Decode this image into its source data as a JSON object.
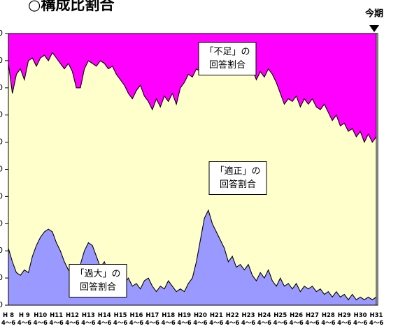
{
  "chart_data": {
    "type": "stacked_area",
    "title": "○構成比割合",
    "current_label": "今期",
    "categories": [
      "H 8\n4～6",
      null,
      null,
      null,
      "H 9\n4～6",
      null,
      null,
      null,
      "H10\n4～6",
      null,
      null,
      null,
      "H11\n4～6",
      null,
      null,
      null,
      "H12\n4～6",
      null,
      null,
      null,
      "H13\n4～6",
      null,
      null,
      null,
      "H14\n4～6",
      null,
      null,
      null,
      "H15\n4～6",
      null,
      null,
      null,
      "H16\n4～6",
      null,
      null,
      null,
      "H17\n4～6",
      null,
      null,
      null,
      "H18\n4～6",
      null,
      null,
      null,
      "H19\n4～6",
      null,
      null,
      null,
      "H20\n4～6",
      null,
      null,
      null,
      "H21\n4～6",
      null,
      null,
      null,
      "H22\n4～6",
      null,
      null,
      null,
      "H23\n4～6",
      null,
      null,
      null,
      "H24\n4～6",
      null,
      null,
      null,
      "H25\n4～6",
      null,
      null,
      null,
      "H26\n4～6",
      null,
      null,
      null,
      "H27\n4～6",
      null,
      null,
      null,
      "H28\n4～6",
      null,
      null,
      null,
      "H29\n4～6",
      null,
      null,
      null,
      "H30\n4～6",
      null,
      null,
      null,
      "H31\n4～6"
    ],
    "series": [
      {
        "color": "#9999ff",
        "values": [
          21,
          16,
          12,
          11,
          13,
          12,
          18,
          22,
          25,
          27,
          28,
          27,
          23,
          20,
          16,
          13,
          11,
          12,
          15,
          20,
          23,
          22,
          18,
          14,
          16,
          12,
          10,
          8,
          9,
          8,
          10,
          7,
          8,
          6,
          9,
          10,
          7,
          5,
          7,
          6,
          9,
          7,
          5,
          6,
          5,
          8,
          10,
          16,
          24,
          32,
          35,
          30,
          27,
          24,
          21,
          16,
          18,
          14,
          15,
          13,
          15,
          11,
          9,
          12,
          10,
          13,
          9,
          7,
          10,
          7,
          8,
          6,
          8,
          5,
          7,
          6,
          7,
          5,
          6,
          4,
          5,
          3,
          5,
          3,
          4,
          2,
          4,
          2,
          3,
          2,
          3,
          2,
          3
        ]
      },
      {
        "color": "#ffffcc",
        "values": [
          68,
          62,
          73,
          76,
          70,
          78,
          73,
          66,
          66,
          65,
          62,
          66,
          68,
          69,
          71,
          76,
          75,
          68,
          65,
          67,
          67,
          67,
          70,
          76,
          73,
          75,
          78,
          77,
          74,
          73,
          68,
          69,
          71,
          75,
          68,
          65,
          65,
          71,
          66,
          71,
          66,
          71,
          69,
          74,
          77,
          77,
          74,
          71,
          62,
          57,
          55,
          58,
          61,
          63,
          65,
          72,
          70,
          72,
          72,
          72,
          73,
          76,
          74,
          74,
          74,
          74,
          76,
          75,
          68,
          67,
          68,
          69,
          69,
          68,
          69,
          68,
          69,
          68,
          66,
          70,
          66,
          65,
          65,
          63,
          63,
          62,
          61,
          60,
          61,
          58,
          60,
          58,
          59
        ]
      },
      {
        "color": "#ff00ff",
        "values": [
          11,
          22,
          15,
          13,
          17,
          10,
          9,
          12,
          9,
          8,
          10,
          7,
          9,
          11,
          13,
          11,
          14,
          20,
          20,
          13,
          10,
          11,
          12,
          10,
          11,
          13,
          12,
          15,
          17,
          19,
          22,
          24,
          21,
          19,
          23,
          25,
          28,
          24,
          27,
          23,
          25,
          22,
          26,
          20,
          18,
          15,
          16,
          13,
          14,
          11,
          10,
          12,
          12,
          13,
          14,
          12,
          12,
          14,
          13,
          15,
          12,
          13,
          17,
          14,
          16,
          13,
          15,
          18,
          22,
          26,
          24,
          25,
          23,
          27,
          24,
          26,
          24,
          27,
          28,
          26,
          29,
          32,
          30,
          34,
          33,
          36,
          35,
          38,
          36,
          40,
          37,
          40,
          38
        ]
      }
    ],
    "annotations": [
      {
        "text": "「不足」の\n回答割合"
      },
      {
        "text": "「適正」の\n回答割合"
      },
      {
        "text": "「過大」の\n回答割合"
      }
    ],
    "ylim": [
      0,
      100
    ],
    "yticks": [
      0,
      10,
      20,
      30,
      40,
      50,
      60,
      70,
      80,
      90,
      100
    ]
  }
}
